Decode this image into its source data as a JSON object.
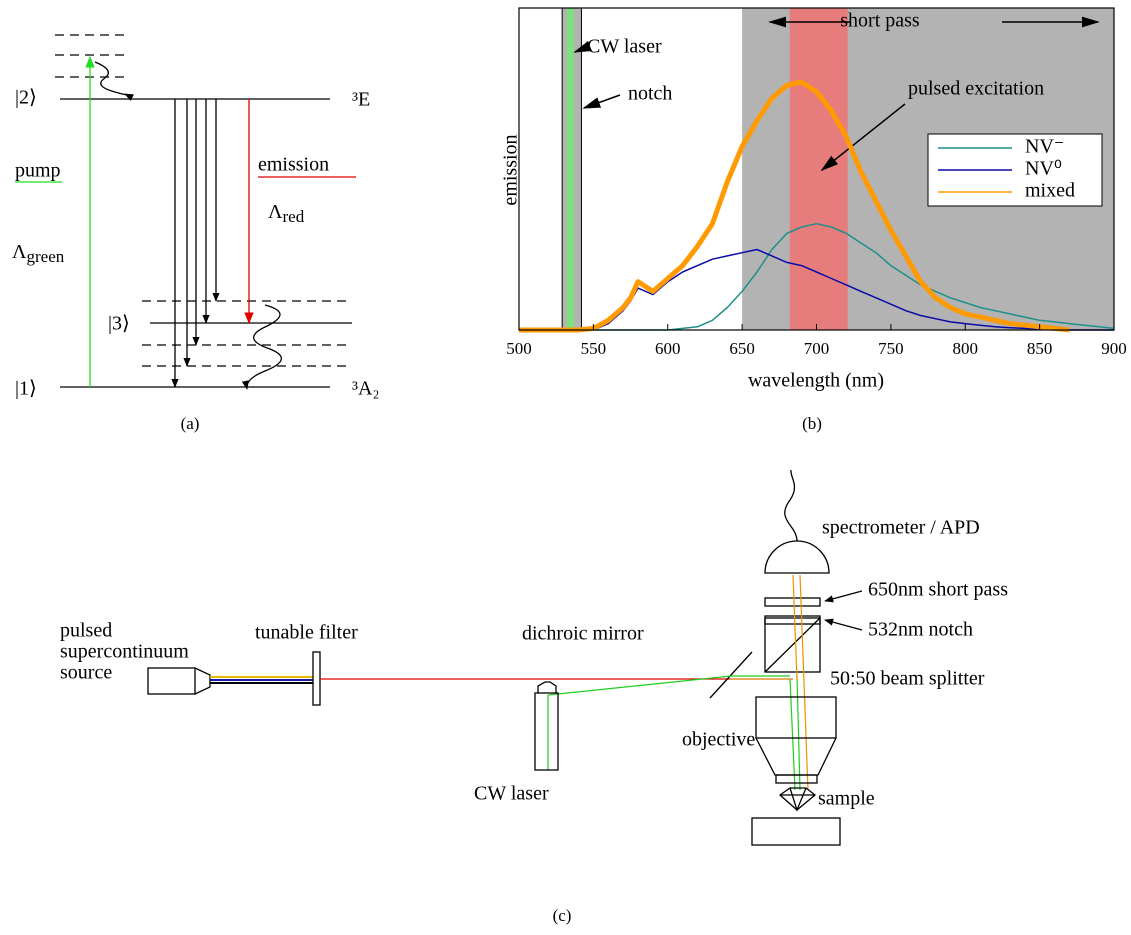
{
  "energy_diagram": {
    "panel_label": "(a)",
    "level_2": "|2⟩",
    "level_3": "|3⟩",
    "level_1": "|1⟩",
    "state_upper": "³E",
    "state_lower": "³A₂",
    "pump": "pump",
    "pump_rate": "Λ",
    "pump_rate_sub": "green",
    "emission": "emission",
    "emission_rate": "Λ",
    "emission_rate_sub": "red"
  },
  "chart_data": {
    "type": "line",
    "panel_label": "(b)",
    "xlabel": "wavelength (nm)",
    "ylabel": "emission",
    "x": [
      500,
      510,
      520,
      530,
      540,
      550,
      560,
      570,
      575,
      580,
      590,
      600,
      610,
      620,
      630,
      640,
      650,
      660,
      670,
      680,
      690,
      700,
      710,
      720,
      730,
      740,
      750,
      760,
      770,
      780,
      790,
      800,
      810,
      820,
      830,
      840,
      850,
      860,
      870,
      880,
      890,
      900
    ],
    "series": [
      {
        "name": "NV⁻",
        "color": "#1f8f8a",
        "values": [
          0,
          0,
          0,
          0,
          0,
          0,
          0,
          0,
          0,
          0,
          0,
          0,
          0.005,
          0.01,
          0.03,
          0.07,
          0.12,
          0.18,
          0.25,
          0.3,
          0.32,
          0.33,
          0.32,
          0.3,
          0.27,
          0.24,
          0.2,
          0.17,
          0.14,
          0.12,
          0.1,
          0.085,
          0.07,
          0.06,
          0.05,
          0.04,
          0.03,
          0.025,
          0.02,
          0.015,
          0.01,
          0.005
        ]
      },
      {
        "name": "NV⁰",
        "color": "#0a0aa8",
        "values": [
          0,
          0,
          0,
          0,
          0,
          0,
          0.02,
          0.06,
          0.09,
          0.13,
          0.11,
          0.15,
          0.18,
          0.2,
          0.22,
          0.23,
          0.24,
          0.25,
          0.23,
          0.21,
          0.2,
          0.18,
          0.16,
          0.14,
          0.12,
          0.1,
          0.08,
          0.06,
          0.045,
          0.035,
          0.025,
          0.02,
          0.015,
          0.01,
          0.007,
          0.005,
          0.003,
          0,
          0,
          0,
          0,
          0
        ]
      },
      {
        "name": "mixed",
        "color": "#ff9a00",
        "values": [
          0,
          0,
          0,
          0,
          0,
          0.005,
          0.03,
          0.07,
          0.1,
          0.15,
          0.12,
          0.16,
          0.2,
          0.26,
          0.33,
          0.46,
          0.57,
          0.65,
          0.72,
          0.76,
          0.77,
          0.74,
          0.68,
          0.6,
          0.49,
          0.4,
          0.31,
          0.23,
          0.15,
          0.1,
          0.07,
          0.05,
          0.04,
          0.03,
          0.02,
          0.015,
          0.01,
          0.005,
          0,
          null,
          null,
          null
        ]
      }
    ],
    "regions": [
      {
        "label": "short pass",
        "start": 650,
        "end": 900,
        "color": "#b3b3b3"
      },
      {
        "label": "pulsed excitation",
        "start": 682,
        "end": 721,
        "color": "#e77c7c"
      },
      {
        "label": "notch",
        "start": 529,
        "end": 542,
        "color": "#b3b3b3"
      },
      {
        "label": "CW laser",
        "start": 532,
        "end": 537,
        "color": "#7ee07e"
      }
    ],
    "xlim": [
      500,
      900
    ],
    "ylim": [
      0,
      1
    ],
    "xticks": [
      500,
      550,
      600,
      650,
      700,
      750,
      800,
      850,
      900
    ],
    "legend": "right"
  },
  "setup_diagram": {
    "panel_label": "(c)",
    "source_1": "pulsed",
    "source_2": "supercontinuum",
    "source_3": "source",
    "filter": "tunable filter",
    "mirror": "dichroic mirror",
    "cw_laser": "CW laser",
    "objective": "objective",
    "sample": "sample",
    "detector": "spectrometer / APD",
    "short_pass": "650nm short pass",
    "notch": "532nm notch",
    "splitter": "50:50 beam splitter"
  }
}
